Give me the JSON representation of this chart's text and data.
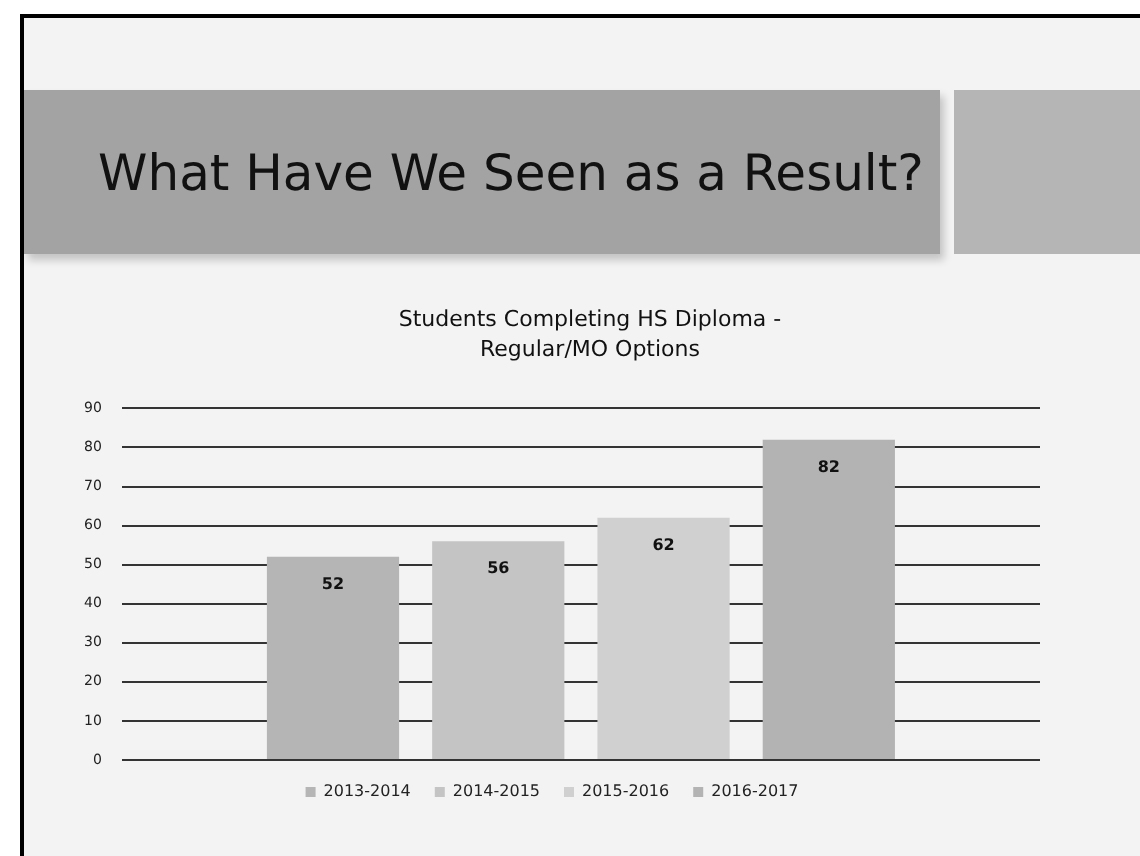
{
  "chart_data": {
    "type": "bar",
    "title": "What Have We Seen as a Result?",
    "subtitle": "Students Completing HS Diploma - Regular/MO Options",
    "categories": [
      null
    ],
    "series": [
      {
        "name": "2013-2014",
        "color": "#b5b5b5",
        "values": [
          52
        ]
      },
      {
        "name": "2014-2015",
        "color": "#c4c4c4",
        "values": [
          56
        ]
      },
      {
        "name": "2015-2016",
        "color": "#d0d0d0",
        "values": [
          62
        ]
      },
      {
        "name": "2016-2017",
        "color": "#b3b3b3",
        "values": [
          82
        ]
      }
    ],
    "ylim": [
      0,
      90
    ],
    "yticks": [
      0,
      10,
      20,
      30,
      40,
      50,
      60,
      70,
      80,
      90
    ],
    "grid": "y",
    "legend": "bottom",
    "data_labels": true
  }
}
